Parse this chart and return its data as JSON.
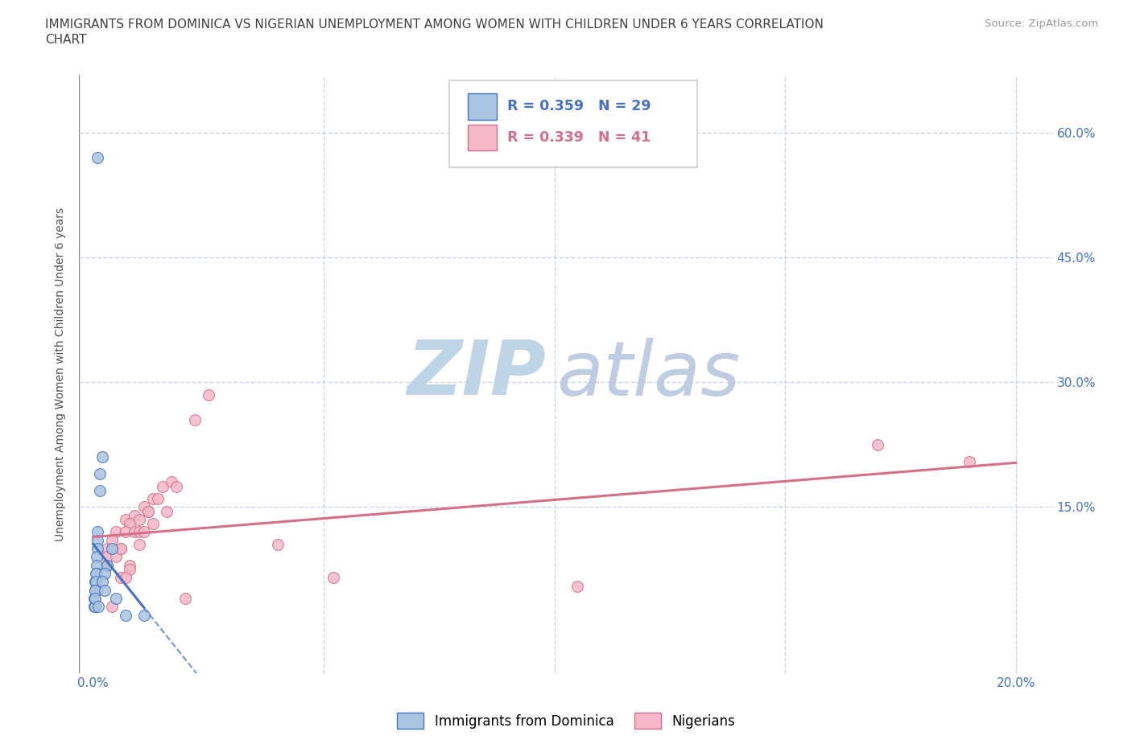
{
  "title_line1": "IMMIGRANTS FROM DOMINICA VS NIGERIAN UNEMPLOYMENT AMONG WOMEN WITH CHILDREN UNDER 6 YEARS CORRELATION",
  "title_line2": "CHART",
  "source": "Source: ZipAtlas.com",
  "ylabel": "Unemployment Among Women with Children Under 6 years",
  "xlim": [
    -0.003,
    0.208
  ],
  "ylim": [
    -0.05,
    0.67
  ],
  "xtick_vals": [
    0.0,
    0.05,
    0.1,
    0.15,
    0.2
  ],
  "ytick_vals": [
    0.0,
    0.15,
    0.3,
    0.45,
    0.6
  ],
  "blue_R": 0.359,
  "blue_N": 29,
  "pink_R": 0.339,
  "pink_N": 41,
  "blue_scatter_color": "#a8c4e0",
  "blue_line_color": "#4472c4",
  "pink_scatter_color": "#f4b8c8",
  "pink_line_color": "#d4708a",
  "grid_color": "#c8d4e8",
  "bg_color": "#ffffff",
  "title_color": "#404040",
  "right_axis_color": "#4472c4",
  "watermark_zip_color": "#c0d4e8",
  "watermark_atlas_color": "#b8c8e0",
  "blue_scatter_x": [
    0.001,
    0.0005,
    0.0005,
    0.0003,
    0.0003,
    0.0004,
    0.002,
    0.0015,
    0.0015,
    0.001,
    0.001,
    0.001,
    0.0008,
    0.0007,
    0.0007,
    0.0008,
    0.0006,
    0.0006,
    0.0005,
    0.0004,
    0.004,
    0.003,
    0.0025,
    0.002,
    0.0025,
    0.005,
    0.007,
    0.011,
    0.0012
  ],
  "blue_scatter_y": [
    0.57,
    0.06,
    0.05,
    0.04,
    0.03,
    0.03,
    0.21,
    0.19,
    0.17,
    0.12,
    0.11,
    0.1,
    0.09,
    0.08,
    0.07,
    0.07,
    0.07,
    0.06,
    0.05,
    0.04,
    0.1,
    0.08,
    0.07,
    0.06,
    0.05,
    0.04,
    0.02,
    0.02,
    0.03
  ],
  "pink_scatter_x": [
    0.003,
    0.003,
    0.001,
    0.005,
    0.004,
    0.003,
    0.007,
    0.006,
    0.005,
    0.009,
    0.008,
    0.007,
    0.006,
    0.011,
    0.01,
    0.009,
    0.013,
    0.012,
    0.01,
    0.015,
    0.014,
    0.012,
    0.017,
    0.013,
    0.011,
    0.008,
    0.025,
    0.022,
    0.018,
    0.01,
    0.008,
    0.006,
    0.004,
    0.007,
    0.016,
    0.02,
    0.04,
    0.052,
    0.105,
    0.17,
    0.19
  ],
  "pink_scatter_y": [
    0.1,
    0.08,
    0.05,
    0.12,
    0.11,
    0.09,
    0.135,
    0.1,
    0.09,
    0.14,
    0.13,
    0.12,
    0.1,
    0.15,
    0.135,
    0.12,
    0.16,
    0.145,
    0.12,
    0.175,
    0.16,
    0.145,
    0.18,
    0.13,
    0.12,
    0.08,
    0.285,
    0.255,
    0.175,
    0.105,
    0.075,
    0.065,
    0.03,
    0.065,
    0.145,
    0.04,
    0.105,
    0.065,
    0.055,
    0.225,
    0.205
  ]
}
